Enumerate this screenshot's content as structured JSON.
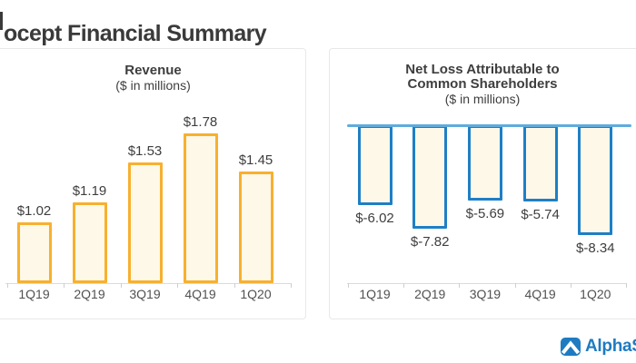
{
  "page": {
    "title": "ocept Financial Summary"
  },
  "branding": {
    "logo_text": "AlphaStre",
    "logo_icon": "alphastreet-chevron-icon",
    "brand_color": "#1e7bc2"
  },
  "chart_data": [
    {
      "type": "bar",
      "title": "Revenue",
      "subtitle": "($ in millions)",
      "categories": [
        "1Q19",
        "2Q19",
        "3Q19",
        "4Q19",
        "1Q20"
      ],
      "values": [
        1.02,
        1.19,
        1.53,
        1.78,
        1.45
      ],
      "value_labels": [
        "$1.02",
        "$1.19",
        "$1.53",
        "$1.78",
        "$1.45"
      ],
      "bar_fill": "#fdf8e8",
      "bar_border": "#f7b02f",
      "orientation": "up",
      "y_baseline": 0.5,
      "ylim": [
        0.5,
        2.1
      ],
      "grid": false,
      "legend": "none"
    },
    {
      "type": "bar",
      "title": "Net Loss Attributable to Common Shareholders",
      "title_lines": [
        "Net Loss Attributable to",
        "Common Shareholders"
      ],
      "subtitle": "($ in millions)",
      "categories": [
        "1Q19",
        "2Q19",
        "3Q19",
        "4Q19",
        "1Q20"
      ],
      "values": [
        -6.02,
        -7.82,
        -5.69,
        -5.74,
        -8.34
      ],
      "value_labels": [
        "$-6.02",
        "$-7.82",
        "$-5.69",
        "$-5.74",
        "$-8.34"
      ],
      "bar_fill": "#fdf8e8",
      "bar_border": "#1e7fc6",
      "zero_line_color": "#5fabde",
      "orientation": "down",
      "ylim": [
        -12,
        0
      ],
      "grid": false,
      "legend": "none"
    }
  ]
}
